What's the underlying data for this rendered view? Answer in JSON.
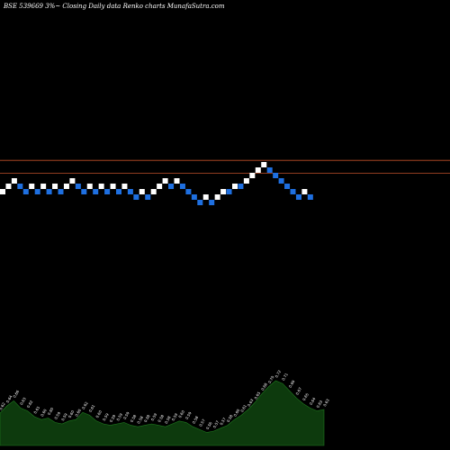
{
  "header": {
    "title": "BSE 539669 3%~   Closing Daily data  Renko  charts MunafaSutra.com"
  },
  "colors": {
    "background": "#000000",
    "up_brick": "#ffffff",
    "down_brick": "#1e6fe0",
    "reference_line": "#c0502a",
    "volume_fill": "#0d3a0d",
    "volume_stroke": "#1f7a1f"
  },
  "chart_data": {
    "type": "renko",
    "bricks": [
      {
        "dir": "up",
        "level": 0
      },
      {
        "dir": "up",
        "level": 1
      },
      {
        "dir": "up",
        "level": 2
      },
      {
        "dir": "down",
        "level": 1
      },
      {
        "dir": "down",
        "level": 0
      },
      {
        "dir": "up",
        "level": 1
      },
      {
        "dir": "down",
        "level": 0
      },
      {
        "dir": "up",
        "level": 1
      },
      {
        "dir": "down",
        "level": 0
      },
      {
        "dir": "up",
        "level": 1
      },
      {
        "dir": "down",
        "level": 0
      },
      {
        "dir": "up",
        "level": 1
      },
      {
        "dir": "up",
        "level": 2
      },
      {
        "dir": "down",
        "level": 1
      },
      {
        "dir": "down",
        "level": 0
      },
      {
        "dir": "up",
        "level": 1
      },
      {
        "dir": "down",
        "level": 0
      },
      {
        "dir": "up",
        "level": 1
      },
      {
        "dir": "down",
        "level": 0
      },
      {
        "dir": "up",
        "level": 1
      },
      {
        "dir": "down",
        "level": 0
      },
      {
        "dir": "up",
        "level": 1
      },
      {
        "dir": "down",
        "level": 0
      },
      {
        "dir": "down",
        "level": -1
      },
      {
        "dir": "up",
        "level": 0
      },
      {
        "dir": "down",
        "level": -1
      },
      {
        "dir": "up",
        "level": 0
      },
      {
        "dir": "up",
        "level": 1
      },
      {
        "dir": "up",
        "level": 2
      },
      {
        "dir": "down",
        "level": 1
      },
      {
        "dir": "up",
        "level": 2
      },
      {
        "dir": "down",
        "level": 1
      },
      {
        "dir": "down",
        "level": 0
      },
      {
        "dir": "down",
        "level": -1
      },
      {
        "dir": "down",
        "level": -2
      },
      {
        "dir": "up",
        "level": -1
      },
      {
        "dir": "down",
        "level": -2
      },
      {
        "dir": "up",
        "level": -1
      },
      {
        "dir": "up",
        "level": 0
      },
      {
        "dir": "down",
        "level": 0
      },
      {
        "dir": "up",
        "level": 1
      },
      {
        "dir": "down",
        "level": 1
      },
      {
        "dir": "up",
        "level": 2
      },
      {
        "dir": "up",
        "level": 3
      },
      {
        "dir": "up",
        "level": 4
      },
      {
        "dir": "up",
        "level": 5
      },
      {
        "dir": "down",
        "level": 4
      },
      {
        "dir": "down",
        "level": 3
      },
      {
        "dir": "down",
        "level": 2
      },
      {
        "dir": "down",
        "level": 1
      },
      {
        "dir": "down",
        "level": 0
      },
      {
        "dir": "down",
        "level": -1
      },
      {
        "dir": "up",
        "level": 0
      },
      {
        "dir": "down",
        "level": -1
      }
    ],
    "reference_levels": [
      5.8,
      3.4
    ],
    "volume": [
      {
        "v": 0.45,
        "label": "0.62"
      },
      {
        "v": 0.55,
        "label": "0.64"
      },
      {
        "v": 0.62,
        "label": "0.66"
      },
      {
        "v": 0.52,
        "label": "0.63"
      },
      {
        "v": 0.48,
        "label": "0.62"
      },
      {
        "v": 0.4,
        "label": "0.61"
      },
      {
        "v": 0.36,
        "label": "0.60"
      },
      {
        "v": 0.38,
        "label": "0.60"
      },
      {
        "v": 0.32,
        "label": "0.59"
      },
      {
        "v": 0.3,
        "label": "0.59"
      },
      {
        "v": 0.34,
        "label": "0.60"
      },
      {
        "v": 0.36,
        "label": "0.60"
      },
      {
        "v": 0.46,
        "label": "0.62"
      },
      {
        "v": 0.42,
        "label": "0.61"
      },
      {
        "v": 0.34,
        "label": "0.60"
      },
      {
        "v": 0.3,
        "label": "0.59"
      },
      {
        "v": 0.28,
        "label": "0.59"
      },
      {
        "v": 0.3,
        "label": "0.59"
      },
      {
        "v": 0.32,
        "label": "0.59"
      },
      {
        "v": 0.28,
        "label": "0.58"
      },
      {
        "v": 0.26,
        "label": "0.58"
      },
      {
        "v": 0.28,
        "label": "0.58"
      },
      {
        "v": 0.3,
        "label": "0.59"
      },
      {
        "v": 0.28,
        "label": "0.58"
      },
      {
        "v": 0.26,
        "label": "0.58"
      },
      {
        "v": 0.3,
        "label": "0.59"
      },
      {
        "v": 0.34,
        "label": "0.60"
      },
      {
        "v": 0.32,
        "label": "0.59"
      },
      {
        "v": 0.26,
        "label": "0.58"
      },
      {
        "v": 0.22,
        "label": "0.57"
      },
      {
        "v": 0.18,
        "label": "0.56"
      },
      {
        "v": 0.2,
        "label": "0.57"
      },
      {
        "v": 0.24,
        "label": "0.57"
      },
      {
        "v": 0.28,
        "label": "0.58"
      },
      {
        "v": 0.36,
        "label": "0.60"
      },
      {
        "v": 0.42,
        "label": "0.61"
      },
      {
        "v": 0.5,
        "label": "0.63"
      },
      {
        "v": 0.6,
        "label": "0.65"
      },
      {
        "v": 0.72,
        "label": "0.68"
      },
      {
        "v": 0.82,
        "label": "0.70"
      },
      {
        "v": 0.9,
        "label": "0.72"
      },
      {
        "v": 0.86,
        "label": "0.71"
      },
      {
        "v": 0.76,
        "label": "0.69"
      },
      {
        "v": 0.66,
        "label": "0.67"
      },
      {
        "v": 0.58,
        "label": "0.65"
      },
      {
        "v": 0.52,
        "label": "0.64"
      },
      {
        "v": 0.48,
        "label": "0.63"
      },
      {
        "v": 0.5,
        "label": "0.63"
      }
    ]
  }
}
